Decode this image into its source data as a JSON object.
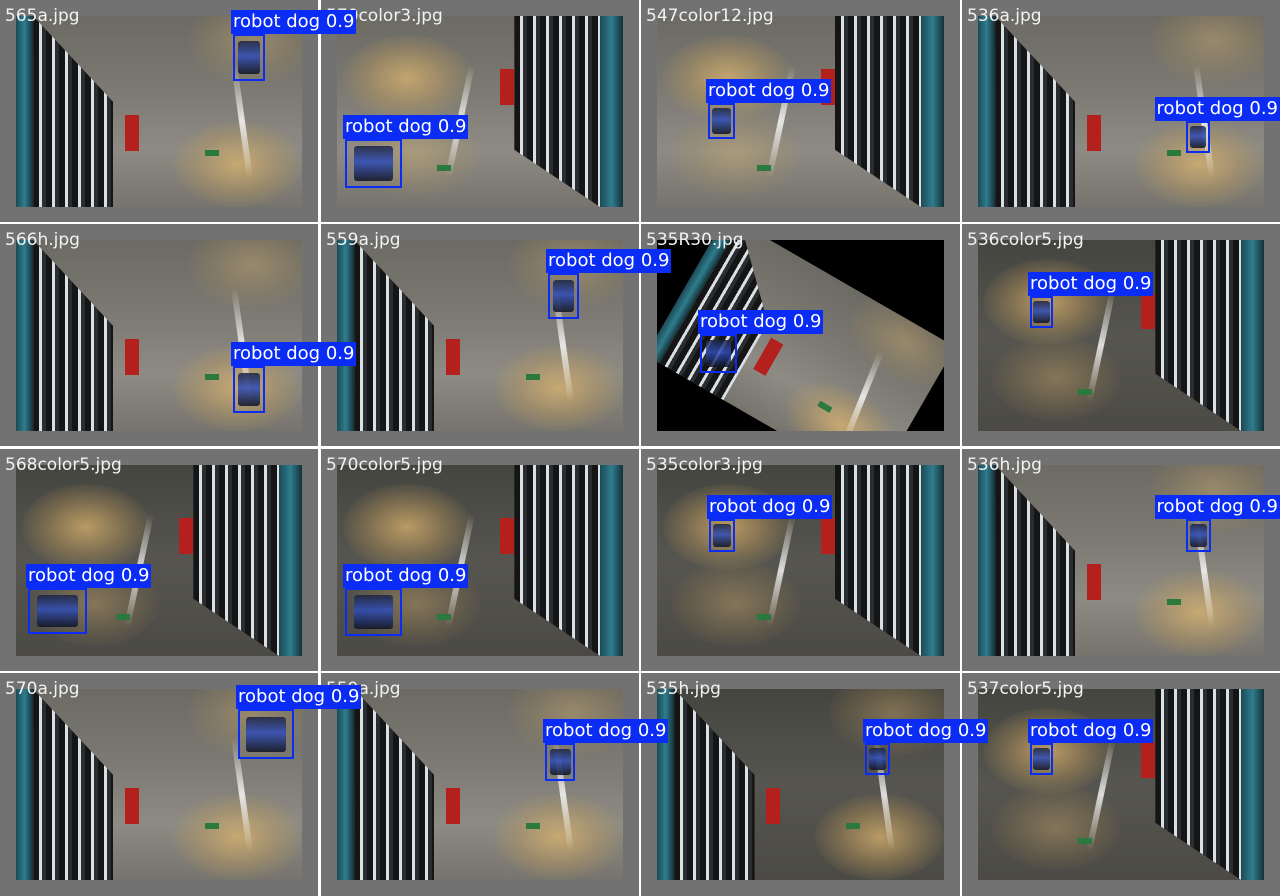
{
  "colors": {
    "box": "#0a2cf5",
    "label_text": "#ffffff",
    "tile_bg": "#727272",
    "filename_text": "#f2f2f2"
  },
  "tiles": [
    {
      "filename": "565a.jpg",
      "label": "robot dog 0.9"
    },
    {
      "filename": "570color3.jpg",
      "label": "robot dog 0.9"
    },
    {
      "filename": "547color12.jpg",
      "label": "robot dog 0.9"
    },
    {
      "filename": "536a.jpg",
      "label": "robot dog 0.9"
    },
    {
      "filename": "566h.jpg",
      "label": "robot dog 0.9"
    },
    {
      "filename": "559a.jpg",
      "label": "robot dog 0.9"
    },
    {
      "filename": "535R30.jpg",
      "label": "robot dog 0.9"
    },
    {
      "filename": "536color5.jpg",
      "label": "robot dog 0.9"
    },
    {
      "filename": "568color5.jpg",
      "label": "robot dog 0.9"
    },
    {
      "filename": "570color5.jpg",
      "label": "robot dog 0.9"
    },
    {
      "filename": "535color3.jpg",
      "label": "robot dog 0.9"
    },
    {
      "filename": "536h.jpg",
      "label": "robot dog 0.9"
    },
    {
      "filename": "570a.jpg",
      "label": "robot dog 0.9"
    },
    {
      "filename": "559a.jpg",
      "label": "robot dog 0.9"
    },
    {
      "filename": "535h.jpg",
      "label": "robot dog 0.9"
    },
    {
      "filename": "537color5.jpg",
      "label": "robot dog 0.9"
    }
  ]
}
